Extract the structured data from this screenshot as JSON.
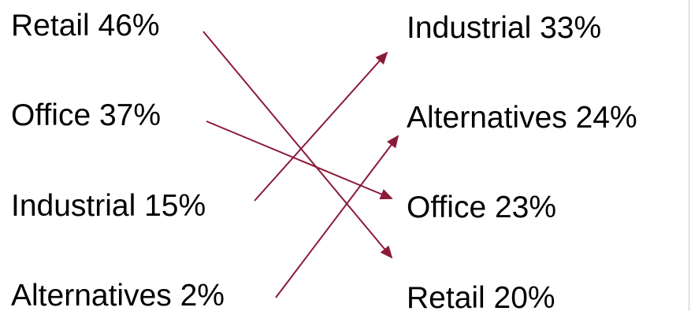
{
  "colors": {
    "arrow": "#8b1a3a",
    "text": "#000000"
  },
  "left_column": [
    {
      "label": "Retail 46%"
    },
    {
      "label": "Office 37%"
    },
    {
      "label": "Industrial 15%"
    },
    {
      "label": "Alternatives 2%"
    }
  ],
  "right_column": [
    {
      "label": "Industrial 33%"
    },
    {
      "label": "Alternatives 24%"
    },
    {
      "label": "Office 23%"
    },
    {
      "label": "Retail 20%"
    }
  ],
  "arrows": [
    {
      "from": "Retail 46%",
      "to": "Retail 20%"
    },
    {
      "from": "Office 37%",
      "to": "Office 23%"
    },
    {
      "from": "Industrial 15%",
      "to": "Industrial 33%"
    },
    {
      "from": "Alternatives 2%",
      "to": "Alternatives 24%"
    }
  ]
}
